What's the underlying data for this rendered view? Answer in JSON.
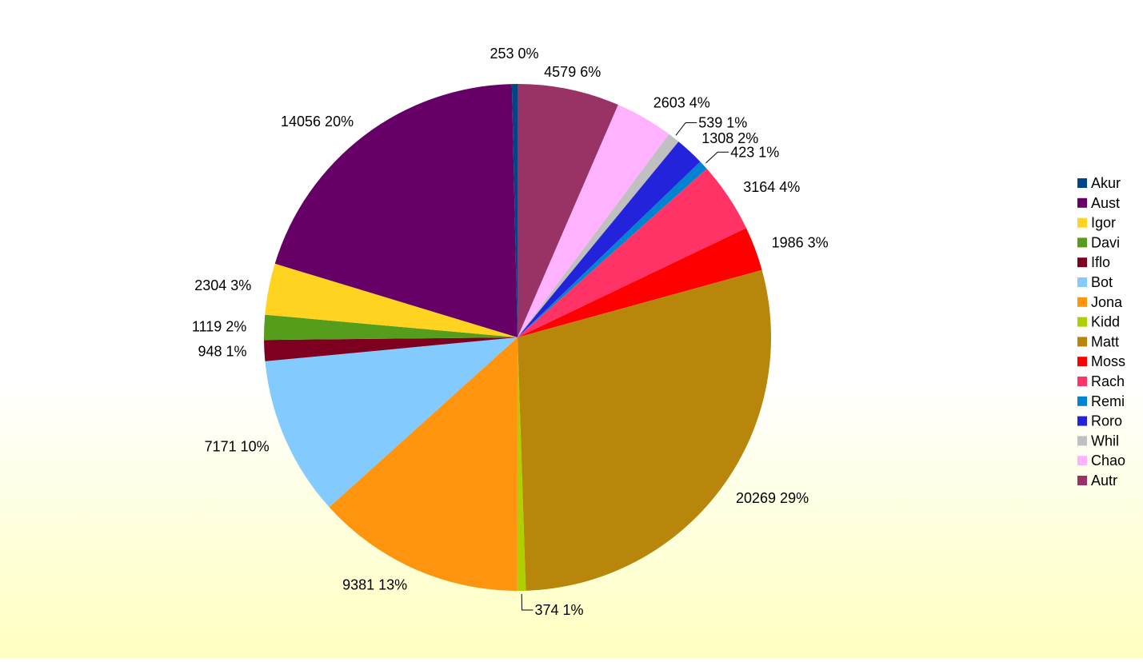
{
  "chart_data": {
    "type": "pie",
    "legend_position": "right",
    "slices": [
      {
        "name": "Akur",
        "value": 253,
        "percent_label": "0%",
        "color": "#004586"
      },
      {
        "name": "Aust",
        "value": 14056,
        "percent_label": "20%",
        "color": "#660066"
      },
      {
        "name": "Igor",
        "value": 2304,
        "percent_label": "3%",
        "color": "#ffd320"
      },
      {
        "name": "Davi",
        "value": 1119,
        "percent_label": "2%",
        "color": "#579d1c"
      },
      {
        "name": "Iflo",
        "value": 948,
        "percent_label": "1%",
        "color": "#7e0021"
      },
      {
        "name": "Bot",
        "value": 7171,
        "percent_label": "10%",
        "color": "#83caff"
      },
      {
        "name": "Jona",
        "value": 9381,
        "percent_label": "13%",
        "color": "#ff950e"
      },
      {
        "name": "Kidd",
        "value": 374,
        "percent_label": "1%",
        "color": "#aecf00"
      },
      {
        "name": "Matt",
        "value": 20269,
        "percent_label": "29%",
        "color": "#b8860b"
      },
      {
        "name": "Moss",
        "value": 1986,
        "percent_label": "3%",
        "color": "#ff0000"
      },
      {
        "name": "Rach",
        "value": 3164,
        "percent_label": "4%",
        "color": "#ff3366"
      },
      {
        "name": "Remi",
        "value": 423,
        "percent_label": "1%",
        "color": "#0084d1"
      },
      {
        "name": "Roro",
        "value": 1308,
        "percent_label": "2%",
        "color": "#2323dc"
      },
      {
        "name": "Whil",
        "value": 539,
        "percent_label": "1%",
        "color": "#c0c0c0"
      },
      {
        "name": "Chao",
        "value": 2603,
        "percent_label": "4%",
        "color": "#ffb2ff"
      },
      {
        "name": "Autr",
        "value": 4579,
        "percent_label": "6%",
        "color": "#993366"
      }
    ]
  }
}
